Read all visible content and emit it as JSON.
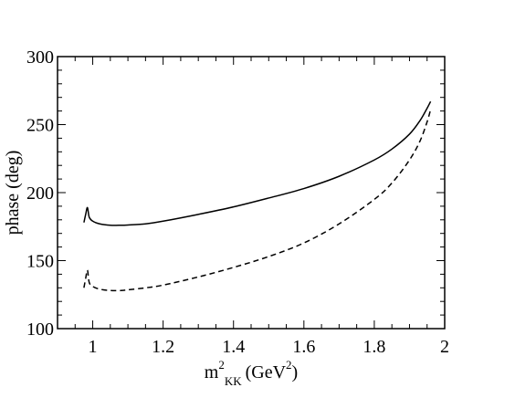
{
  "chart_data": {
    "type": "line",
    "title": "",
    "xlabel": {
      "base": "m",
      "sup": "2",
      "sub": "KK",
      "unit": "(GeV",
      "unit_sup": "2",
      "unit_close": ")"
    },
    "ylabel": "phase (deg)",
    "xlim": [
      0.9,
      2.0
    ],
    "ylim": [
      100,
      300
    ],
    "x_ticks": [
      1,
      1.2,
      1.4,
      1.6,
      1.8,
      2
    ],
    "x_tick_labels": [
      "1",
      "1.2",
      "1.4",
      "1.6",
      "1.8",
      "2"
    ],
    "y_ticks": [
      100,
      150,
      200,
      250,
      300
    ],
    "y_tick_labels": [
      "100",
      "150",
      "200",
      "250",
      "300"
    ],
    "grid": false,
    "legend": "none",
    "series": [
      {
        "style": "solid",
        "x": [
          0.975,
          0.98,
          0.985,
          0.99,
          1.0,
          1.02,
          1.05,
          1.08,
          1.1,
          1.15,
          1.2,
          1.3,
          1.4,
          1.5,
          1.6,
          1.7,
          1.8,
          1.85,
          1.9,
          1.93,
          1.95,
          1.96
        ],
        "y": [
          178,
          184,
          189,
          182,
          179,
          177,
          176,
          176,
          176.2,
          177,
          179,
          184,
          189.5,
          196,
          203,
          212,
          224,
          232,
          243,
          253,
          262,
          267
        ]
      },
      {
        "style": "dashed",
        "x": [
          0.975,
          0.98,
          0.985,
          0.99,
          1.0,
          1.02,
          1.05,
          1.08,
          1.1,
          1.15,
          1.2,
          1.3,
          1.4,
          1.5,
          1.6,
          1.7,
          1.8,
          1.85,
          1.9,
          1.93,
          1.95,
          1.96
        ],
        "y": [
          130,
          137,
          143,
          134,
          131,
          129,
          128,
          128,
          128.5,
          130,
          132,
          138,
          145,
          153,
          163,
          177,
          195,
          207,
          224,
          238,
          252,
          261
        ]
      }
    ]
  }
}
